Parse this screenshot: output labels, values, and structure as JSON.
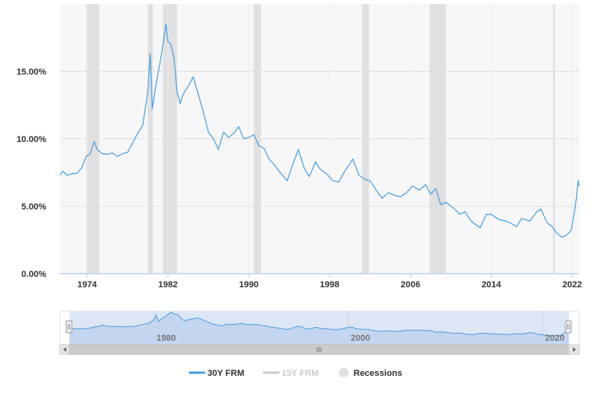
{
  "chart_data": {
    "type": "line",
    "y_tick_labels": [
      "0.00%",
      "5.00%",
      "10.00%",
      "15.00%"
    ],
    "y_tick_values": [
      0,
      5,
      10,
      15
    ],
    "x_tick_labels": [
      "1974",
      "1982",
      "1990",
      "1998",
      "2006",
      "2014",
      "2022"
    ],
    "x_tick_values": [
      1974,
      1982,
      1990,
      1998,
      2006,
      2014,
      2022
    ],
    "xlim": [
      1971.3,
      2022.7
    ],
    "ylim": [
      0,
      20
    ],
    "grid": true,
    "legend_position": "bottom-center",
    "recessions": [
      [
        1973.9,
        1975.2
      ],
      [
        1980.0,
        1980.5
      ],
      [
        1981.5,
        1982.9
      ],
      [
        1990.5,
        1991.2
      ],
      [
        2001.2,
        2001.9
      ],
      [
        2007.9,
        2009.5
      ],
      [
        2020.1,
        2020.3
      ]
    ],
    "series": [
      {
        "name": "30Y FRM",
        "color": "#4a9fe0",
        "points": [
          [
            1971.3,
            7.3
          ],
          [
            1971.6,
            7.6
          ],
          [
            1972.0,
            7.3
          ],
          [
            1972.5,
            7.4
          ],
          [
            1973.0,
            7.45
          ],
          [
            1973.5,
            7.9
          ],
          [
            1973.9,
            8.7
          ],
          [
            1974.3,
            8.9
          ],
          [
            1974.7,
            9.8
          ],
          [
            1975.0,
            9.2
          ],
          [
            1975.5,
            8.9
          ],
          [
            1976.0,
            8.85
          ],
          [
            1976.5,
            8.95
          ],
          [
            1977.0,
            8.7
          ],
          [
            1977.5,
            8.9
          ],
          [
            1978.0,
            9.0
          ],
          [
            1978.5,
            9.7
          ],
          [
            1979.0,
            10.4
          ],
          [
            1979.5,
            11.0
          ],
          [
            1979.8,
            12.5
          ],
          [
            1980.0,
            13.5
          ],
          [
            1980.25,
            16.3
          ],
          [
            1980.45,
            12.2
          ],
          [
            1980.7,
            13.5
          ],
          [
            1981.0,
            14.8
          ],
          [
            1981.3,
            16.0
          ],
          [
            1981.6,
            17.5
          ],
          [
            1981.8,
            18.5
          ],
          [
            1982.0,
            17.2
          ],
          [
            1982.3,
            17.0
          ],
          [
            1982.6,
            16.0
          ],
          [
            1982.9,
            13.5
          ],
          [
            1983.2,
            12.6
          ],
          [
            1983.5,
            13.3
          ],
          [
            1984.0,
            13.9
          ],
          [
            1984.5,
            14.6
          ],
          [
            1985.0,
            13.3
          ],
          [
            1985.5,
            12.0
          ],
          [
            1986.0,
            10.5
          ],
          [
            1986.5,
            10.0
          ],
          [
            1987.0,
            9.2
          ],
          [
            1987.5,
            10.5
          ],
          [
            1988.0,
            10.1
          ],
          [
            1988.5,
            10.4
          ],
          [
            1989.0,
            10.9
          ],
          [
            1989.5,
            10.0
          ],
          [
            1990.0,
            10.1
          ],
          [
            1990.5,
            10.3
          ],
          [
            1991.0,
            9.5
          ],
          [
            1991.5,
            9.3
          ],
          [
            1992.0,
            8.5
          ],
          [
            1992.5,
            8.1
          ],
          [
            1993.0,
            7.6
          ],
          [
            1993.8,
            6.9
          ],
          [
            1994.3,
            8.0
          ],
          [
            1994.9,
            9.2
          ],
          [
            1995.5,
            7.8
          ],
          [
            1996.0,
            7.2
          ],
          [
            1996.6,
            8.3
          ],
          [
            1997.0,
            7.8
          ],
          [
            1997.7,
            7.4
          ],
          [
            1998.3,
            6.9
          ],
          [
            1998.9,
            6.8
          ],
          [
            1999.5,
            7.6
          ],
          [
            2000.3,
            8.5
          ],
          [
            2000.9,
            7.3
          ],
          [
            2001.5,
            7.0
          ],
          [
            2002.0,
            6.9
          ],
          [
            2002.6,
            6.2
          ],
          [
            2003.2,
            5.6
          ],
          [
            2003.8,
            6.0
          ],
          [
            2004.5,
            5.8
          ],
          [
            2005.0,
            5.7
          ],
          [
            2005.6,
            6.0
          ],
          [
            2006.2,
            6.5
          ],
          [
            2006.9,
            6.2
          ],
          [
            2007.5,
            6.6
          ],
          [
            2008.0,
            5.9
          ],
          [
            2008.5,
            6.3
          ],
          [
            2009.0,
            5.1
          ],
          [
            2009.5,
            5.3
          ],
          [
            2010.2,
            4.9
          ],
          [
            2010.9,
            4.4
          ],
          [
            2011.4,
            4.6
          ],
          [
            2012.0,
            3.9
          ],
          [
            2012.9,
            3.4
          ],
          [
            2013.5,
            4.4
          ],
          [
            2014.0,
            4.4
          ],
          [
            2014.8,
            4.0
          ],
          [
            2015.5,
            3.9
          ],
          [
            2016.5,
            3.5
          ],
          [
            2017.0,
            4.1
          ],
          [
            2017.8,
            3.9
          ],
          [
            2018.5,
            4.6
          ],
          [
            2018.9,
            4.8
          ],
          [
            2019.5,
            3.8
          ],
          [
            2020.0,
            3.5
          ],
          [
            2020.5,
            3.0
          ],
          [
            2021.0,
            2.7
          ],
          [
            2021.5,
            2.9
          ],
          [
            2021.9,
            3.2
          ],
          [
            2022.2,
            4.5
          ],
          [
            2022.4,
            5.5
          ],
          [
            2022.6,
            6.9
          ],
          [
            2022.7,
            6.5
          ]
        ]
      },
      {
        "name": "15Y FRM",
        "color": "#cccccc"
      },
      {
        "name": "Recessions",
        "color": "#e0e0e0"
      }
    ],
    "navigator": {
      "labels": [
        "1980",
        "2000",
        "2020"
      ],
      "label_values": [
        1980,
        2000,
        2020
      ],
      "scroll_grip": "III"
    }
  }
}
